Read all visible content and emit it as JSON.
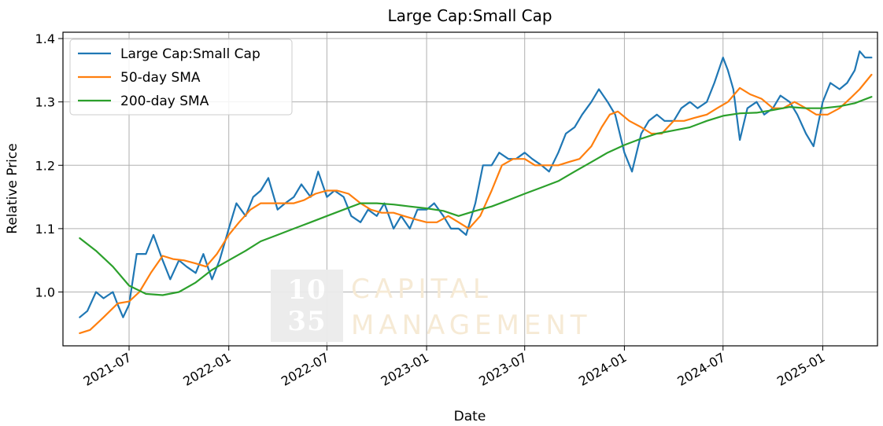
{
  "watermark": {
    "num_top": "10",
    "num_bottom": "35",
    "line1": "CAPITAL",
    "line2": "MANAGEMENT"
  },
  "colors": {
    "ratio": "#1f77b4",
    "sma50": "#ff7f0e",
    "sma200": "#2ca02c",
    "grid": "#b0b0b0"
  },
  "chart_data": {
    "type": "line",
    "title": "Large Cap:Small Cap",
    "xlabel": "Date",
    "ylabel": "Relative Price",
    "ylim": [
      0.915,
      1.41
    ],
    "yticks": [
      1.0,
      1.1,
      1.2,
      1.3,
      1.4
    ],
    "ytick_labels": [
      "1.0",
      "1.1",
      "1.2",
      "1.3",
      "1.4"
    ],
    "xlim": [
      "2021-03-01",
      "2025-04-12"
    ],
    "xticks": [
      "2021-07-01",
      "2022-01-01",
      "2022-07-01",
      "2023-01-01",
      "2023-07-01",
      "2024-01-01",
      "2024-07-01",
      "2025-01-01"
    ],
    "xtick_labels": [
      "2021-07",
      "2022-01",
      "2022-07",
      "2023-01",
      "2023-07",
      "2024-01",
      "2024-07",
      "2025-01"
    ],
    "grid": true,
    "legend_position": "top-left",
    "series": [
      {
        "name": "Large Cap:Small Cap",
        "color_key": "ratio",
        "x": [
          "2021-04-01",
          "2021-04-15",
          "2021-05-01",
          "2021-05-15",
          "2021-06-01",
          "2021-06-10",
          "2021-06-20",
          "2021-07-01",
          "2021-07-15",
          "2021-08-01",
          "2021-08-15",
          "2021-09-01",
          "2021-09-15",
          "2021-10-01",
          "2021-10-15",
          "2021-11-01",
          "2021-11-15",
          "2021-12-01",
          "2021-12-15",
          "2022-01-01",
          "2022-01-15",
          "2022-02-01",
          "2022-02-15",
          "2022-03-01",
          "2022-03-15",
          "2022-04-01",
          "2022-04-15",
          "2022-05-01",
          "2022-05-15",
          "2022-06-01",
          "2022-06-15",
          "2022-07-01",
          "2022-07-15",
          "2022-08-01",
          "2022-08-15",
          "2022-09-01",
          "2022-09-15",
          "2022-10-01",
          "2022-10-15",
          "2022-11-01",
          "2022-11-15",
          "2022-12-01",
          "2022-12-15",
          "2023-01-01",
          "2023-01-15",
          "2023-02-01",
          "2023-02-15",
          "2023-03-01",
          "2023-03-15",
          "2023-04-01",
          "2023-04-15",
          "2023-05-01",
          "2023-05-15",
          "2023-06-01",
          "2023-06-15",
          "2023-07-01",
          "2023-07-15",
          "2023-08-01",
          "2023-08-15",
          "2023-09-01",
          "2023-09-15",
          "2023-10-01",
          "2023-10-15",
          "2023-11-01",
          "2023-11-15",
          "2023-12-01",
          "2023-12-15",
          "2024-01-01",
          "2024-01-15",
          "2024-02-01",
          "2024-02-15",
          "2024-03-01",
          "2024-03-15",
          "2024-04-01",
          "2024-04-15",
          "2024-05-01",
          "2024-05-15",
          "2024-06-01",
          "2024-06-15",
          "2024-07-01",
          "2024-07-10",
          "2024-07-20",
          "2024-08-01",
          "2024-08-15",
          "2024-09-01",
          "2024-09-15",
          "2024-10-01",
          "2024-10-15",
          "2024-11-01",
          "2024-11-15",
          "2024-12-01",
          "2024-12-15",
          "2025-01-01",
          "2025-01-15",
          "2025-02-01",
          "2025-02-15",
          "2025-03-01",
          "2025-03-10",
          "2025-03-20",
          "2025-04-01"
        ],
        "values": [
          0.96,
          0.97,
          1.0,
          0.99,
          1.0,
          0.98,
          0.96,
          0.98,
          1.06,
          1.06,
          1.09,
          1.05,
          1.02,
          1.05,
          1.04,
          1.03,
          1.06,
          1.02,
          1.05,
          1.1,
          1.14,
          1.12,
          1.15,
          1.16,
          1.18,
          1.13,
          1.14,
          1.15,
          1.17,
          1.15,
          1.19,
          1.15,
          1.16,
          1.15,
          1.12,
          1.11,
          1.13,
          1.12,
          1.14,
          1.1,
          1.12,
          1.1,
          1.13,
          1.13,
          1.14,
          1.12,
          1.1,
          1.1,
          1.09,
          1.14,
          1.2,
          1.2,
          1.22,
          1.21,
          1.21,
          1.22,
          1.21,
          1.2,
          1.19,
          1.22,
          1.25,
          1.26,
          1.28,
          1.3,
          1.32,
          1.3,
          1.28,
          1.22,
          1.19,
          1.25,
          1.27,
          1.28,
          1.27,
          1.27,
          1.29,
          1.3,
          1.29,
          1.3,
          1.33,
          1.37,
          1.35,
          1.32,
          1.24,
          1.29,
          1.3,
          1.28,
          1.29,
          1.31,
          1.3,
          1.28,
          1.25,
          1.23,
          1.3,
          1.33,
          1.32,
          1.33,
          1.35,
          1.38,
          1.37,
          1.37
        ]
      },
      {
        "name": "50-day SMA",
        "color_key": "sma50",
        "x": [
          "2021-04-01",
          "2021-04-20",
          "2021-05-15",
          "2021-06-10",
          "2021-07-01",
          "2021-07-20",
          "2021-08-10",
          "2021-09-01",
          "2021-09-20",
          "2021-10-10",
          "2021-11-01",
          "2021-11-20",
          "2021-12-10",
          "2022-01-01",
          "2022-01-20",
          "2022-02-10",
          "2022-03-01",
          "2022-04-01",
          "2022-05-01",
          "2022-05-20",
          "2022-06-10",
          "2022-07-01",
          "2022-07-20",
          "2022-08-10",
          "2022-09-01",
          "2022-09-20",
          "2022-10-10",
          "2022-11-01",
          "2022-11-20",
          "2022-12-10",
          "2023-01-01",
          "2023-01-20",
          "2023-02-10",
          "2023-03-01",
          "2023-03-20",
          "2023-04-10",
          "2023-05-01",
          "2023-05-20",
          "2023-06-10",
          "2023-07-01",
          "2023-07-20",
          "2023-08-10",
          "2023-09-01",
          "2023-09-20",
          "2023-10-10",
          "2023-11-01",
          "2023-11-20",
          "2023-12-05",
          "2023-12-20",
          "2024-01-10",
          "2024-02-01",
          "2024-02-20",
          "2024-03-10",
          "2024-04-01",
          "2024-04-20",
          "2024-05-10",
          "2024-06-01",
          "2024-06-20",
          "2024-07-10",
          "2024-08-01",
          "2024-08-20",
          "2024-09-10",
          "2024-10-01",
          "2024-10-20",
          "2024-11-10",
          "2024-12-01",
          "2024-12-20",
          "2025-01-10",
          "2025-02-01",
          "2025-02-20",
          "2025-03-10",
          "2025-04-01"
        ],
        "values": [
          0.935,
          0.94,
          0.96,
          0.982,
          0.985,
          1.0,
          1.03,
          1.057,
          1.052,
          1.05,
          1.045,
          1.04,
          1.06,
          1.09,
          1.11,
          1.13,
          1.14,
          1.14,
          1.14,
          1.145,
          1.155,
          1.16,
          1.16,
          1.155,
          1.14,
          1.13,
          1.125,
          1.125,
          1.12,
          1.115,
          1.11,
          1.11,
          1.12,
          1.11,
          1.1,
          1.12,
          1.16,
          1.2,
          1.21,
          1.21,
          1.2,
          1.2,
          1.2,
          1.205,
          1.21,
          1.23,
          1.26,
          1.28,
          1.285,
          1.27,
          1.26,
          1.25,
          1.25,
          1.27,
          1.27,
          1.275,
          1.28,
          1.29,
          1.3,
          1.322,
          1.312,
          1.305,
          1.29,
          1.29,
          1.3,
          1.29,
          1.28,
          1.28,
          1.29,
          1.305,
          1.32,
          1.343
        ]
      },
      {
        "name": "200-day SMA",
        "color_key": "sma200",
        "x": [
          "2021-04-01",
          "2021-05-01",
          "2021-06-01",
          "2021-07-01",
          "2021-08-01",
          "2021-09-01",
          "2021-10-01",
          "2021-11-01",
          "2021-12-01",
          "2022-01-01",
          "2022-02-01",
          "2022-03-01",
          "2022-04-01",
          "2022-05-01",
          "2022-06-01",
          "2022-07-01",
          "2022-08-01",
          "2022-09-01",
          "2022-10-01",
          "2022-11-01",
          "2022-12-01",
          "2023-01-01",
          "2023-02-01",
          "2023-03-01",
          "2023-04-01",
          "2023-05-01",
          "2023-06-01",
          "2023-07-01",
          "2023-08-01",
          "2023-09-01",
          "2023-10-01",
          "2023-11-01",
          "2023-12-01",
          "2024-01-01",
          "2024-02-01",
          "2024-03-01",
          "2024-04-01",
          "2024-05-01",
          "2024-06-01",
          "2024-07-01",
          "2024-08-01",
          "2024-09-01",
          "2024-10-01",
          "2024-11-01",
          "2024-12-01",
          "2025-01-01",
          "2025-02-01",
          "2025-03-01",
          "2025-04-01"
        ],
        "values": [
          1.085,
          1.065,
          1.04,
          1.01,
          0.997,
          0.995,
          1.0,
          1.015,
          1.035,
          1.05,
          1.065,
          1.08,
          1.09,
          1.1,
          1.11,
          1.12,
          1.13,
          1.14,
          1.14,
          1.138,
          1.135,
          1.132,
          1.128,
          1.12,
          1.128,
          1.135,
          1.145,
          1.155,
          1.165,
          1.175,
          1.19,
          1.205,
          1.22,
          1.232,
          1.242,
          1.25,
          1.255,
          1.26,
          1.27,
          1.278,
          1.282,
          1.283,
          1.287,
          1.292,
          1.29,
          1.29,
          1.293,
          1.298,
          1.308
        ]
      }
    ]
  }
}
